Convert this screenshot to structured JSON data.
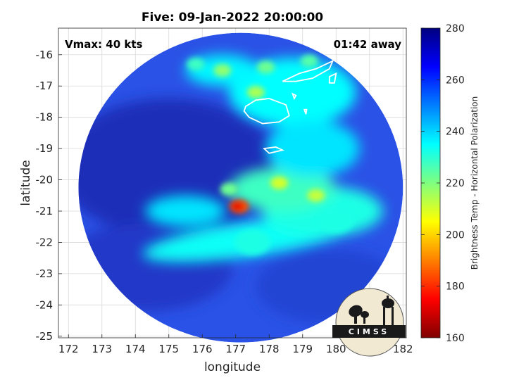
{
  "chart_data": {
    "type": "heatmap",
    "title": "Five: 09-Jan-2022 20:00:00",
    "xlabel": "longitude",
    "ylabel": "latitude",
    "xlim": [
      171.7,
      182.1
    ],
    "ylim": [
      -25.05,
      -15.15
    ],
    "xticks": [
      "172",
      "173",
      "174",
      "175",
      "176",
      "177",
      "178",
      "179",
      "180",
      "181",
      "182"
    ],
    "yticks": [
      "-16",
      "-17",
      "-18",
      "-19",
      "-20",
      "-21",
      "-22",
      "-23",
      "-24",
      "-25"
    ],
    "grid": true,
    "annotations": {
      "left": "Vmax: 40 kts",
      "right": "01:42 away"
    },
    "colorbar": {
      "label": "Brightness Temp - Horizontal Polarization",
      "range": [
        160,
        280
      ],
      "ticks": [
        "280",
        "260",
        "240",
        "220",
        "200",
        "180",
        "160"
      ],
      "colormap": "jet",
      "placement": "right"
    },
    "swath": {
      "center_lon": 177.15,
      "center_lat": -20.25,
      "radius_lon": 4.85,
      "radius_lat": 4.95
    },
    "features": [
      {
        "type": "rainband",
        "lon": 177.1,
        "lat": -20.85,
        "tb": 185
      },
      {
        "type": "rainband",
        "lon": 178.3,
        "lat": -20.1,
        "tb": 210
      },
      {
        "type": "rainband",
        "lon": 179.4,
        "lat": -20.5,
        "tb": 212
      },
      {
        "type": "rainband",
        "lon": 176.8,
        "lat": -20.3,
        "tb": 222
      },
      {
        "type": "rainband",
        "lon": 177.6,
        "lat": -17.2,
        "tb": 215
      },
      {
        "type": "rainband",
        "lon": 177.9,
        "lat": -16.4,
        "tb": 222
      },
      {
        "type": "rainband",
        "lon": 176.6,
        "lat": -16.5,
        "tb": 218
      },
      {
        "type": "rainband",
        "lon": 179.2,
        "lat": -16.2,
        "tb": 225
      },
      {
        "type": "rainband",
        "lon": 175.8,
        "lat": -16.3,
        "tb": 228
      },
      {
        "type": "outer_band",
        "lon": 177.5,
        "lat": -22.0,
        "tb": 232
      },
      {
        "type": "outer_band",
        "lon": 180.0,
        "lat": -21.3,
        "tb": 232
      }
    ],
    "logo": "CIMSS"
  },
  "colors": {
    "background": "#ffffff",
    "plot_background": "#ffffff",
    "grid": "#d9d9d9",
    "coastline": "#ffffff"
  }
}
